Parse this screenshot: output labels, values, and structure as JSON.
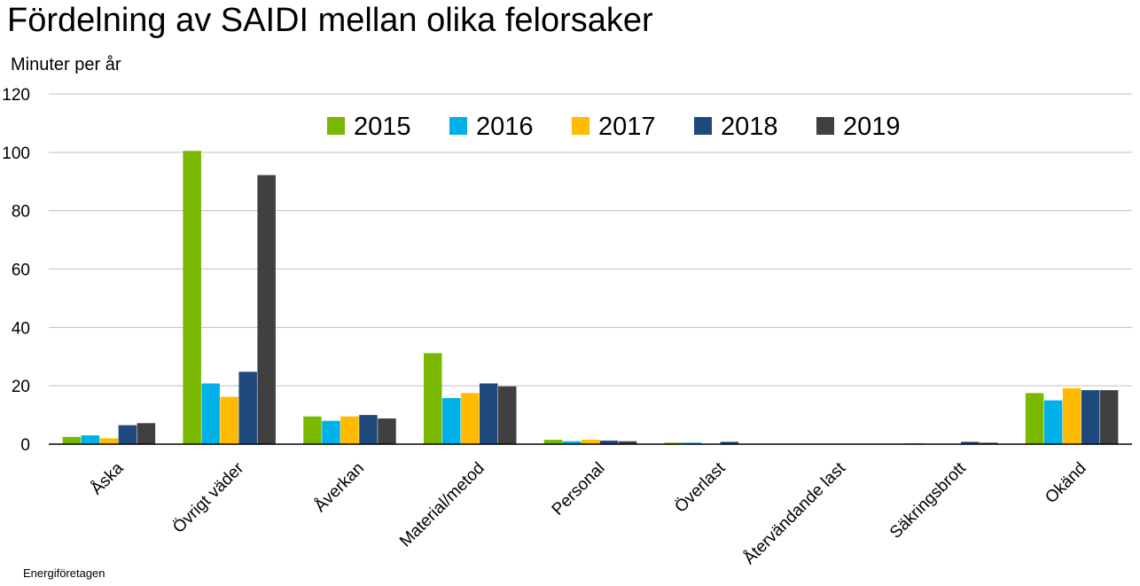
{
  "chart_data": {
    "type": "bar",
    "title": "Fördelning av SAIDI mellan olika felorsaker",
    "ylabel": "Minuter per år",
    "xlabel": "",
    "ylim": [
      0,
      120
    ],
    "yticks": [
      0,
      20,
      40,
      60,
      80,
      100,
      120
    ],
    "grid": true,
    "legend_position": "top-center",
    "categories": [
      "Åska",
      "Övrigt väder",
      "Åverkan",
      "Material/metod",
      "Personal",
      "Överlast",
      "Återvändande last",
      "Säkringsbrott",
      "Okänd"
    ],
    "series": [
      {
        "name": "2015",
        "color": "#7ab800",
        "values": [
          2.5,
          100.5,
          9.5,
          31.2,
          1.5,
          0.5,
          0.0,
          0.3,
          17.5
        ]
      },
      {
        "name": "2016",
        "color": "#00b0e8",
        "values": [
          3.0,
          20.8,
          8.0,
          15.8,
          1.0,
          0.5,
          0.0,
          0.0,
          15.0
        ]
      },
      {
        "name": "2017",
        "color": "#ffbb00",
        "values": [
          2.0,
          16.2,
          9.5,
          17.5,
          1.5,
          0.0,
          0.0,
          0.0,
          19.2
        ]
      },
      {
        "name": "2018",
        "color": "#1f497d",
        "values": [
          6.5,
          24.8,
          10.0,
          20.8,
          1.2,
          0.8,
          0.0,
          0.8,
          18.5
        ]
      },
      {
        "name": "2019",
        "color": "#404040",
        "values": [
          7.2,
          92.2,
          8.8,
          19.8,
          1.0,
          0.0,
          0.0,
          0.5,
          18.5
        ]
      }
    ]
  },
  "footer": {
    "source": "Energiföretagen"
  }
}
